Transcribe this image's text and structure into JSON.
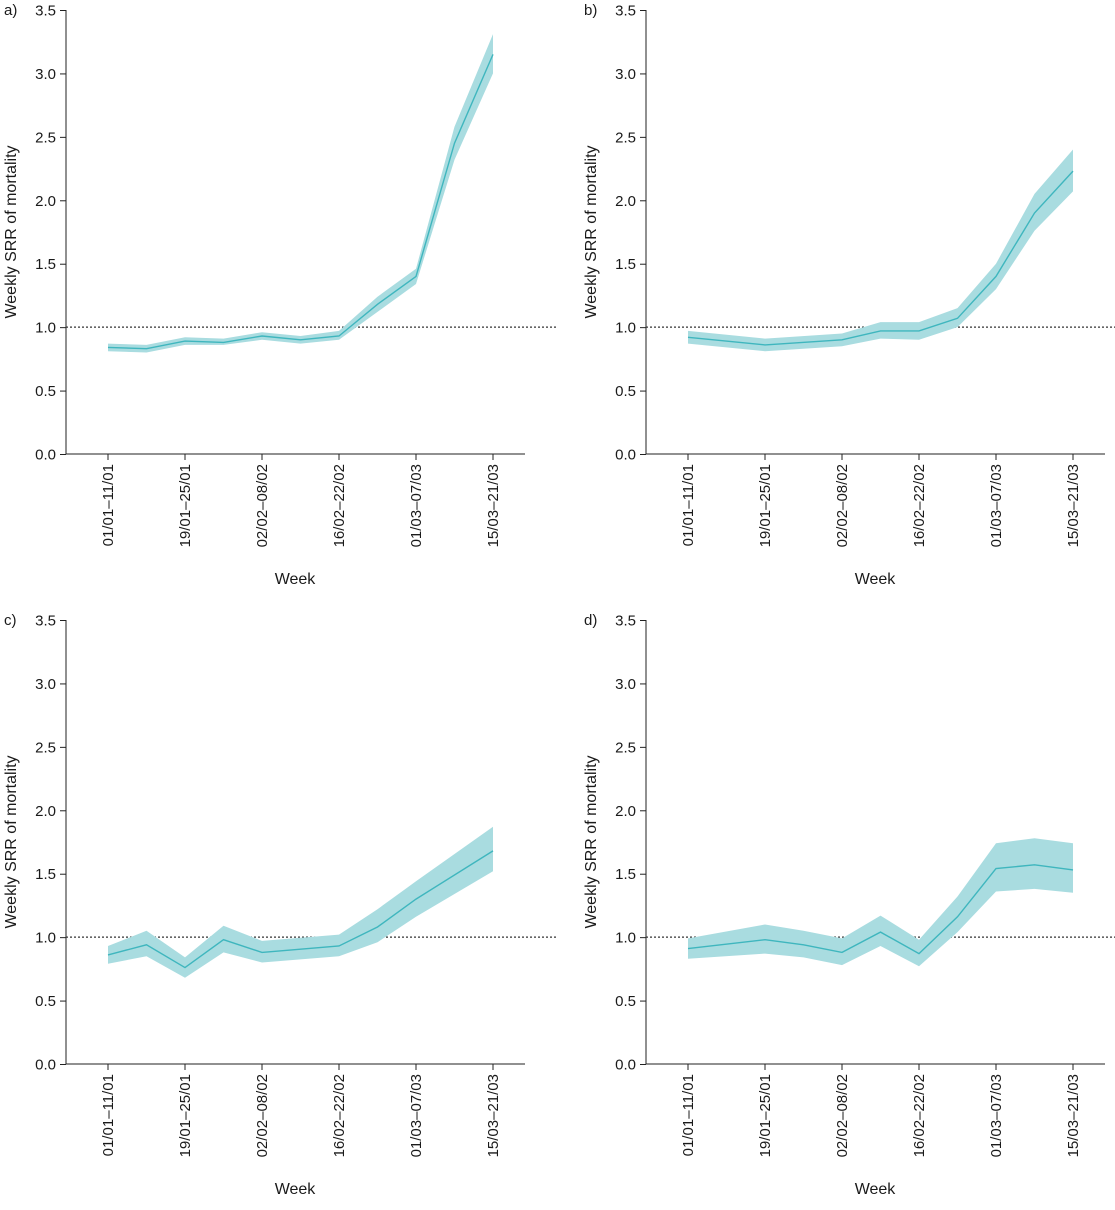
{
  "chart_data": [
    {
      "panel_label": "a)",
      "type": "line",
      "ylabel": "Weekly SRR of mortality",
      "xlabel": "Week",
      "ylim": [
        0,
        3.5
      ],
      "yticks": [
        "0.0",
        "0.5",
        "1.0",
        "1.5",
        "2.0",
        "2.5",
        "3.0",
        "3.5"
      ],
      "xtick_labels": [
        "01/01–11/01",
        "19/01–25/01",
        "02/02–08/02",
        "16/02–22/02",
        "01/03–07/03",
        "15/03–21/03"
      ],
      "reference_line": 1.0,
      "x": [
        0,
        1,
        2,
        3,
        4,
        5,
        6,
        7,
        8,
        9,
        10
      ],
      "values": [
        0.84,
        0.83,
        0.89,
        0.88,
        0.93,
        0.9,
        0.93,
        1.18,
        1.4,
        2.45,
        3.15
      ],
      "lower": [
        0.81,
        0.8,
        0.86,
        0.86,
        0.9,
        0.87,
        0.9,
        1.12,
        1.34,
        2.32,
        3.0
      ],
      "upper": [
        0.87,
        0.86,
        0.92,
        0.91,
        0.96,
        0.93,
        0.97,
        1.24,
        1.46,
        2.58,
        3.31
      ],
      "line_color": "#3fb6be",
      "band_color": "#a9dce0"
    },
    {
      "panel_label": "b)",
      "type": "line",
      "ylabel": "Weekly SRR of mortality",
      "xlabel": "Week",
      "ylim": [
        0,
        3.5
      ],
      "yticks": [
        "0.0",
        "0.5",
        "1.0",
        "1.5",
        "2.0",
        "2.5",
        "3.0",
        "3.5"
      ],
      "xtick_labels": [
        "01/01–11/01",
        "19/01–25/01",
        "02/02–08/02",
        "16/02–22/02",
        "01/03–07/03",
        "15/03–21/03"
      ],
      "reference_line": 1.0,
      "x": [
        0,
        2,
        4,
        5,
        6,
        7,
        8,
        9,
        10
      ],
      "values": [
        0.92,
        0.86,
        0.9,
        0.97,
        0.97,
        1.07,
        1.4,
        1.9,
        2.23
      ],
      "lower": [
        0.87,
        0.81,
        0.85,
        0.91,
        0.9,
        1.0,
        1.3,
        1.76,
        2.07
      ],
      "upper": [
        0.97,
        0.91,
        0.95,
        1.04,
        1.04,
        1.15,
        1.5,
        2.05,
        2.4
      ],
      "line_color": "#3fb6be",
      "band_color": "#a9dce0"
    },
    {
      "panel_label": "c)",
      "type": "line",
      "ylabel": "Weekly SRR of mortality",
      "xlabel": "Week",
      "ylim": [
        0,
        3.5
      ],
      "yticks": [
        "0.0",
        "0.5",
        "1.0",
        "1.5",
        "2.0",
        "2.5",
        "3.0",
        "3.5"
      ],
      "xtick_labels": [
        "01/01–11/01",
        "19/01–25/01",
        "02/02–08/02",
        "16/02–22/02",
        "01/03–07/03",
        "15/03–21/03"
      ],
      "reference_line": 1.0,
      "x": [
        0,
        1,
        2,
        3,
        4,
        6,
        7,
        8,
        10
      ],
      "values": [
        0.86,
        0.94,
        0.76,
        0.98,
        0.88,
        0.93,
        1.08,
        1.3,
        1.68
      ],
      "lower": [
        0.79,
        0.85,
        0.68,
        0.88,
        0.8,
        0.85,
        0.96,
        1.16,
        1.52
      ],
      "upper": [
        0.93,
        1.05,
        0.84,
        1.09,
        0.97,
        1.02,
        1.22,
        1.44,
        1.87
      ],
      "line_color": "#3fb6be",
      "band_color": "#a9dce0"
    },
    {
      "panel_label": "d)",
      "type": "line",
      "ylabel": "Weekly SRR of mortality",
      "xlabel": "Week",
      "ylim": [
        0,
        3.5
      ],
      "yticks": [
        "0.0",
        "0.5",
        "1.0",
        "1.5",
        "2.0",
        "2.5",
        "3.0",
        "3.5"
      ],
      "xtick_labels": [
        "01/01–11/01",
        "19/01–25/01",
        "02/02–08/02",
        "16/02–22/02",
        "01/03–07/03",
        "15/03–21/03"
      ],
      "reference_line": 1.0,
      "x": [
        0,
        2,
        3,
        4,
        5,
        6,
        7,
        8,
        9,
        10
      ],
      "values": [
        0.91,
        0.98,
        0.94,
        0.88,
        1.04,
        0.87,
        1.16,
        1.54,
        1.57,
        1.53
      ],
      "lower": [
        0.83,
        0.87,
        0.84,
        0.78,
        0.93,
        0.77,
        1.04,
        1.36,
        1.38,
        1.35
      ],
      "upper": [
        0.99,
        1.1,
        1.05,
        0.99,
        1.17,
        0.98,
        1.32,
        1.74,
        1.78,
        1.74
      ],
      "line_color": "#3fb6be",
      "band_color": "#a9dce0"
    }
  ]
}
